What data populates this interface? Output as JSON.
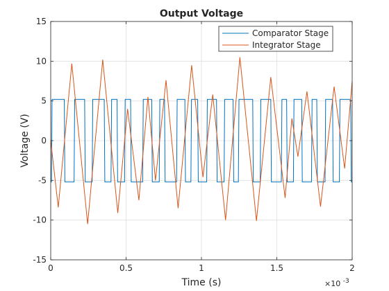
{
  "chart_data": {
    "type": "line",
    "title": "Output Voltage",
    "xlabel": "Time (s)",
    "ylabel": "Voltage (V)",
    "x_multiplier_label": "×10",
    "x_multiplier_exponent": "-3",
    "xlim": [
      0,
      2
    ],
    "ylim": [
      -15,
      15
    ],
    "x_ticks": [
      0,
      0.5,
      1,
      1.5,
      2
    ],
    "x_tick_labels": [
      "0",
      "0.5",
      "1",
      "1.5",
      "2"
    ],
    "y_ticks": [
      -15,
      -10,
      -5,
      0,
      5,
      10,
      15
    ],
    "y_tick_labels": [
      "-15",
      "-10",
      "-5",
      "0",
      "5",
      "10",
      "15"
    ],
    "x_scale_note": "x values in units of 1e-3 s",
    "grid": true,
    "legend_position": "top-right",
    "series": [
      {
        "name": "Comparator Stage",
        "color": "#0072BD",
        "waveform": "square",
        "amplitude": 5.2,
        "transitions_x": [
          0.005,
          0.09,
          0.155,
          0.225,
          0.275,
          0.355,
          0.4,
          0.44,
          0.49,
          0.53,
          0.61,
          0.67,
          0.72,
          0.755,
          0.835,
          0.89,
          0.93,
          0.975,
          1.035,
          1.1,
          1.15,
          1.21,
          1.245,
          1.34,
          1.39,
          1.46,
          1.53,
          1.565,
          1.61,
          1.665,
          1.73,
          1.765,
          1.82,
          1.87,
          1.915,
          1.99
        ],
        "start_level": -5.2
      },
      {
        "name": "Integrator Stage",
        "color": "#D95319",
        "waveform": "triangle",
        "points": [
          [
            0,
            0
          ],
          [
            0.05,
            -8.4
          ],
          [
            0.14,
            9.7
          ],
          [
            0.245,
            -10.5
          ],
          [
            0.345,
            10.2
          ],
          [
            0.445,
            -9.1
          ],
          [
            0.51,
            4.0
          ],
          [
            0.585,
            -7.5
          ],
          [
            0.645,
            5.5
          ],
          [
            0.695,
            -5.0
          ],
          [
            0.765,
            7.6
          ],
          [
            0.845,
            -8.5
          ],
          [
            0.935,
            9.5
          ],
          [
            1.01,
            -4.6
          ],
          [
            1.075,
            5.8
          ],
          [
            1.16,
            -10.0
          ],
          [
            1.255,
            10.5
          ],
          [
            1.365,
            -10.1
          ],
          [
            1.46,
            8.0
          ],
          [
            1.555,
            -7.2
          ],
          [
            1.6,
            2.8
          ],
          [
            1.64,
            -2.0
          ],
          [
            1.7,
            6.2
          ],
          [
            1.79,
            -8.3
          ],
          [
            1.88,
            6.8
          ],
          [
            1.95,
            -3.5
          ],
          [
            2.0,
            7.5
          ]
        ]
      }
    ]
  }
}
